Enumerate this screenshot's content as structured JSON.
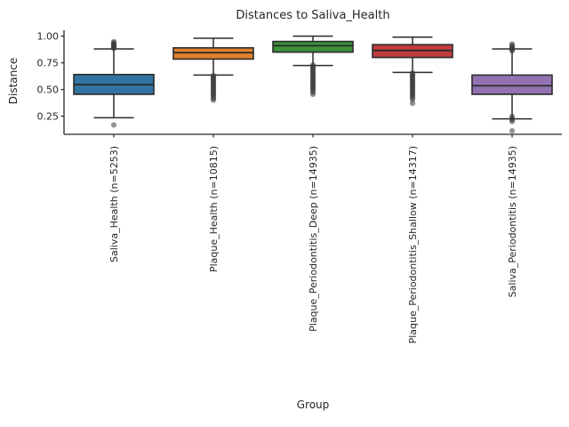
{
  "figure": {
    "background_color": "#ffffff",
    "text_color": "#262626",
    "spine_color": "#262626",
    "box_edge_color": "#2b2b2b",
    "flier_color": "#3a3a3a"
  },
  "chart_data": {
    "type": "boxplot",
    "title": "Distances to Saliva_Health",
    "xlabel": "Group",
    "ylabel": "Distance",
    "ylim": [
      0.08,
      1.055
    ],
    "grid": false,
    "legend": null,
    "yticks": [
      {
        "label": "1.00",
        "value": 1.0
      },
      {
        "label": "0.75",
        "value": 0.75
      },
      {
        "label": "0.50",
        "value": 0.5
      },
      {
        "label": "0.25",
        "value": 0.25
      }
    ],
    "categories": [
      "Saliva_Health (n=5253)",
      "Plaque_Health (n=10815)",
      "Plaque_Periodontitis_Deep (n=14935)",
      "Plaque_Periodontitis_Shallow (n=14317)",
      "Saliva_Periodontitis (n=14935)"
    ],
    "boxes": [
      {
        "group": "Saliva_Health",
        "n": 5253,
        "label": "Saliva_Health (n=5253)",
        "color": "#3274a1",
        "q1": 0.455,
        "median": 0.545,
        "q3": 0.64,
        "whisker_low": 0.235,
        "whisker_high": 0.88,
        "outliers": [
          0.168,
          0.885,
          0.892,
          0.899,
          0.906,
          0.913,
          0.92,
          0.928,
          0.937,
          0.948
        ]
      },
      {
        "group": "Plaque_Health",
        "n": 10815,
        "label": "Plaque_Health (n=10815)",
        "color": "#e1812c",
        "q1": 0.785,
        "median": 0.845,
        "q3": 0.89,
        "whisker_low": 0.635,
        "whisker_high": 0.98,
        "outliers": [
          0.63,
          0.62,
          0.61,
          0.6,
          0.59,
          0.578,
          0.566,
          0.554,
          0.542,
          0.53,
          0.518,
          0.506,
          0.494,
          0.482,
          0.47,
          0.458,
          0.446,
          0.43,
          0.415,
          0.4
        ]
      },
      {
        "group": "Plaque_Periodontitis_Deep",
        "n": 14935,
        "label": "Plaque_Periodontitis_Deep (n=14935)",
        "color": "#3a923a",
        "q1": 0.85,
        "median": 0.91,
        "q3": 0.95,
        "whisker_low": 0.725,
        "whisker_high": 1.0,
        "outliers": [
          0.73,
          0.718,
          0.706,
          0.694,
          0.682,
          0.67,
          0.658,
          0.646,
          0.634,
          0.622,
          0.61,
          0.598,
          0.586,
          0.574,
          0.562,
          0.55,
          0.538,
          0.526,
          0.514,
          0.502,
          0.49,
          0.473,
          0.455
        ]
      },
      {
        "group": "Plaque_Periodontitis_Shallow",
        "n": 14317,
        "label": "Plaque_Periodontitis_Shallow (n=14317)",
        "color": "#c03d3e",
        "q1": 0.8,
        "median": 0.865,
        "q3": 0.92,
        "whisker_low": 0.66,
        "whisker_high": 0.99,
        "outliers": [
          0.655,
          0.643,
          0.631,
          0.619,
          0.607,
          0.595,
          0.583,
          0.571,
          0.559,
          0.547,
          0.535,
          0.523,
          0.511,
          0.499,
          0.487,
          0.475,
          0.463,
          0.451,
          0.438,
          0.422,
          0.405,
          0.37
        ]
      },
      {
        "group": "Saliva_Periodontitis",
        "n": 14935,
        "label": "Saliva_Periodontitis (n=14935)",
        "color": "#9372b2",
        "q1": 0.455,
        "median": 0.535,
        "q3": 0.635,
        "whisker_low": 0.225,
        "whisker_high": 0.88,
        "outliers": [
          0.862,
          0.872,
          0.882,
          0.892,
          0.902,
          0.912,
          0.925,
          0.248,
          0.232,
          0.215,
          0.2,
          0.113
        ]
      }
    ]
  }
}
